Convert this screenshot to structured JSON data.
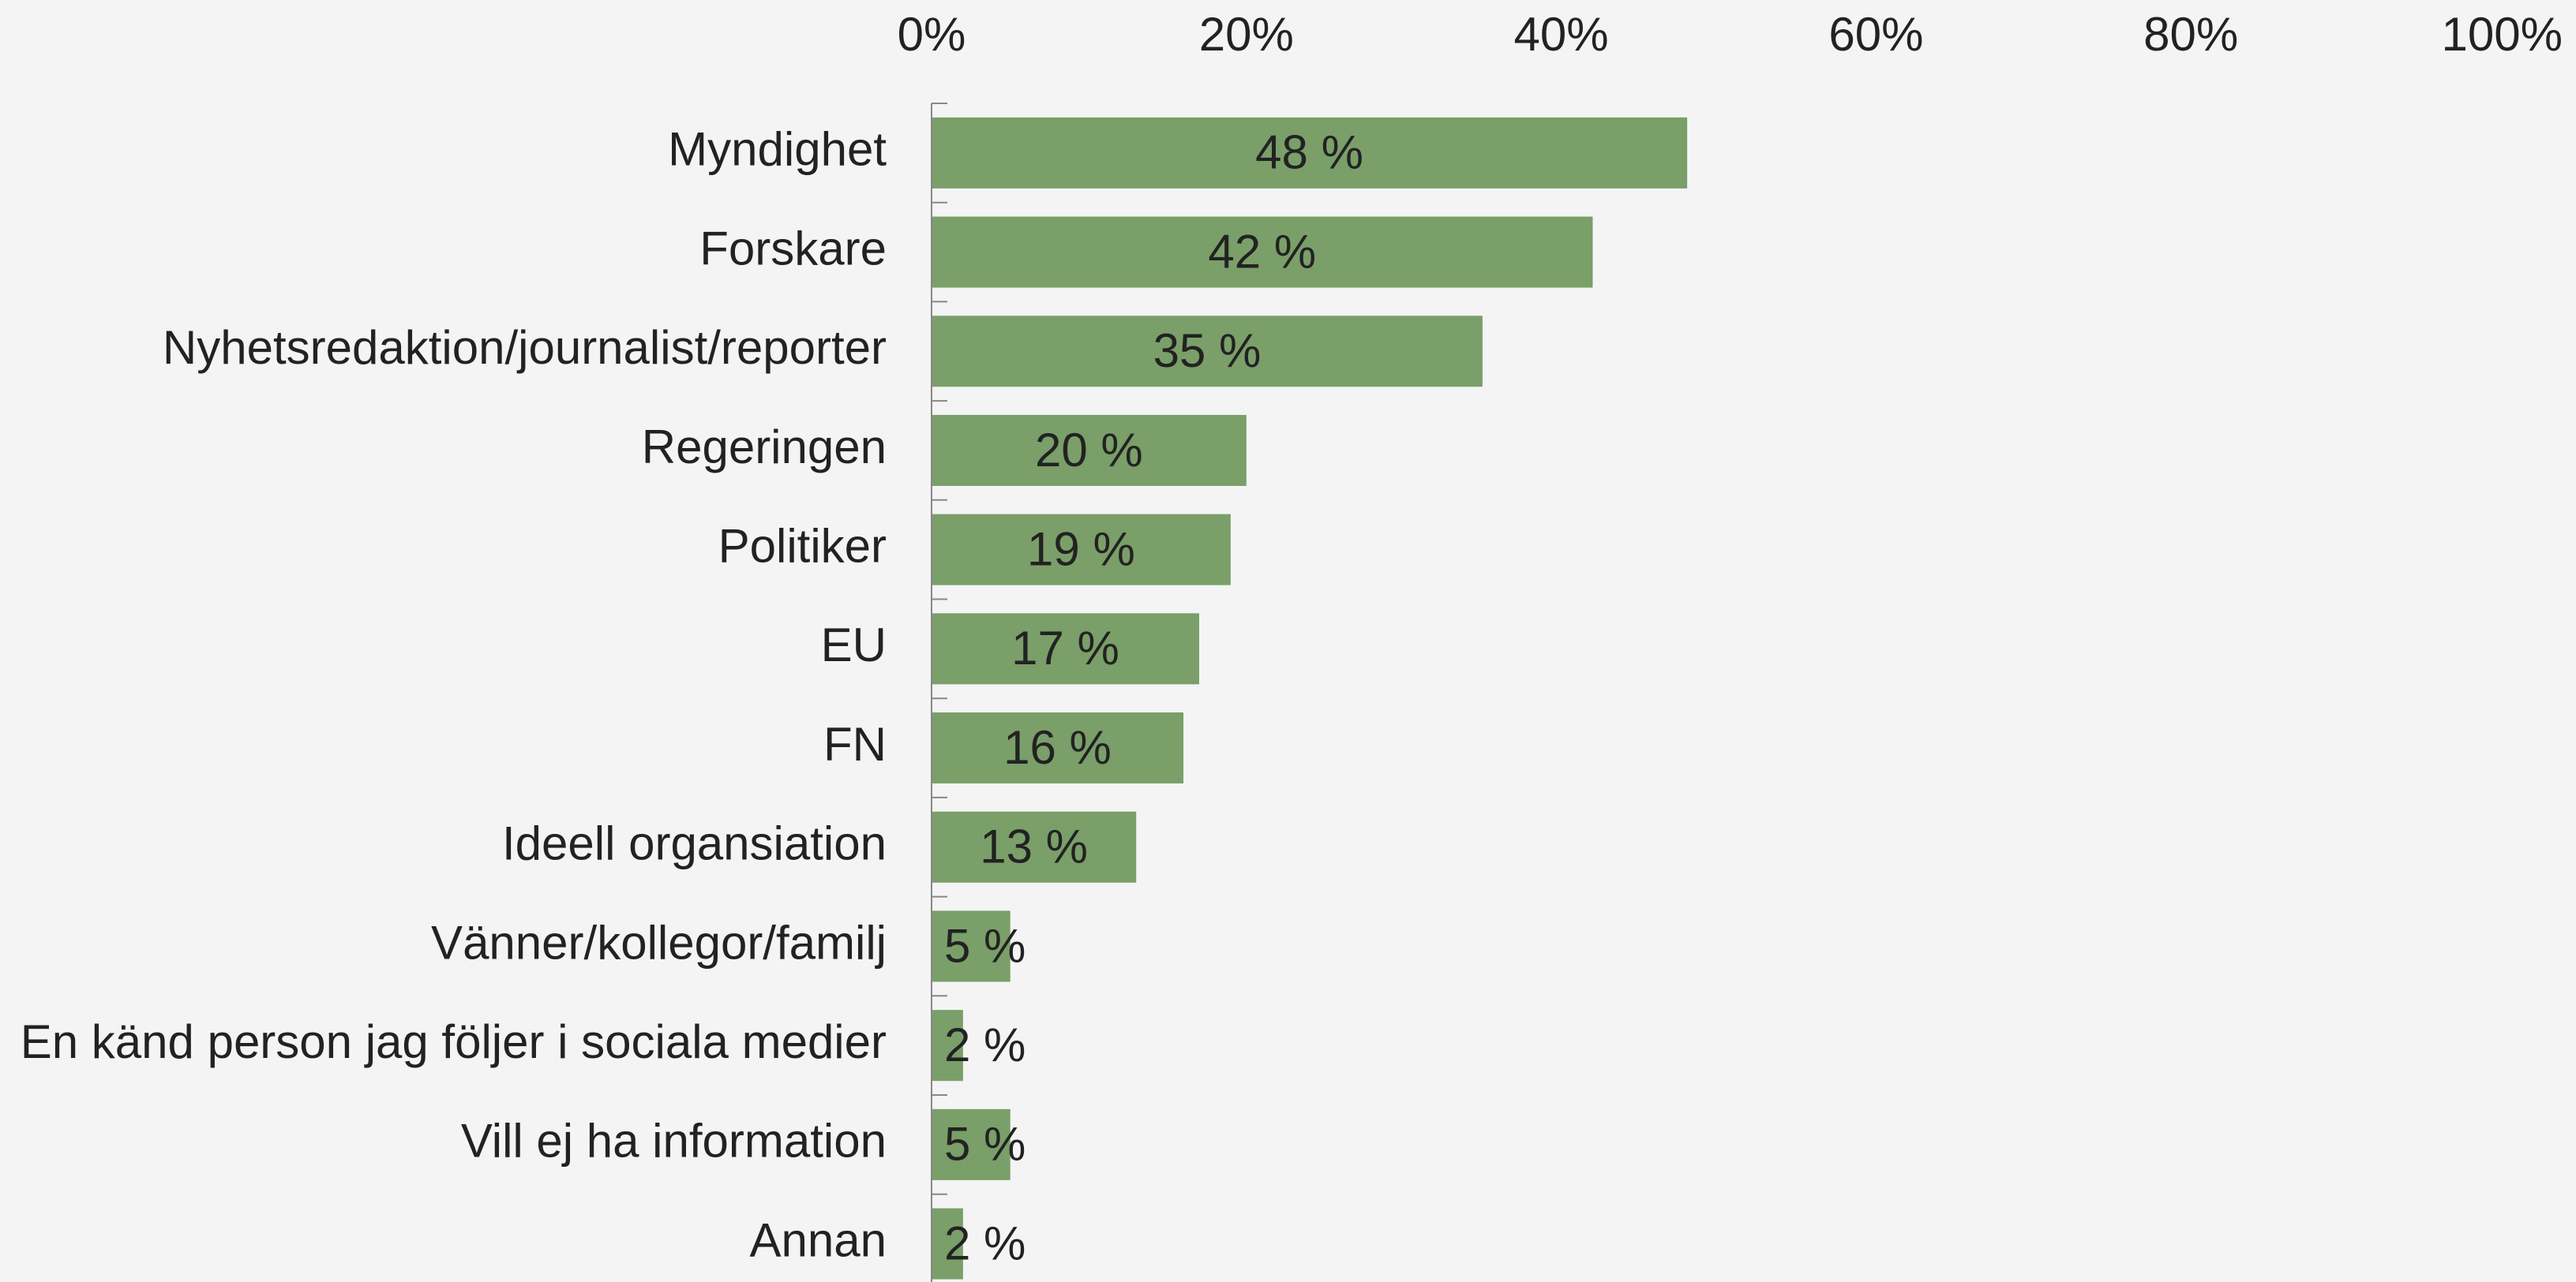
{
  "chart_data": {
    "type": "bar",
    "orientation": "horizontal",
    "categories": [
      "Myndighet",
      "Forskare",
      "Nyhetsredaktion/journalist/reporter",
      "Regeringen",
      "Politiker",
      "EU",
      "FN",
      "Ideell organsiation",
      "Vänner/kollegor/familj",
      "En känd person jag följer i sociala medier",
      "Vill ej ha information",
      "Annan"
    ],
    "values": [
      48,
      42,
      35,
      20,
      19,
      17,
      16,
      13,
      5,
      2,
      5,
      2
    ],
    "value_labels": [
      "48 %",
      "42 %",
      "35 %",
      "20 %",
      "19 %",
      "17 %",
      "16 %",
      "13 %",
      "5 %",
      "2 %",
      "5 %",
      "2 %"
    ],
    "color": "#7a9f69",
    "xlim": [
      0,
      100
    ],
    "xticks": [
      {
        "value": 0,
        "label": "0%"
      },
      {
        "value": 20,
        "label": "20%"
      },
      {
        "value": 40,
        "label": "40%"
      },
      {
        "value": 60,
        "label": "60%"
      },
      {
        "value": 80,
        "label": "80%"
      },
      {
        "value": 100,
        "label": "100%"
      }
    ],
    "grid": false
  }
}
